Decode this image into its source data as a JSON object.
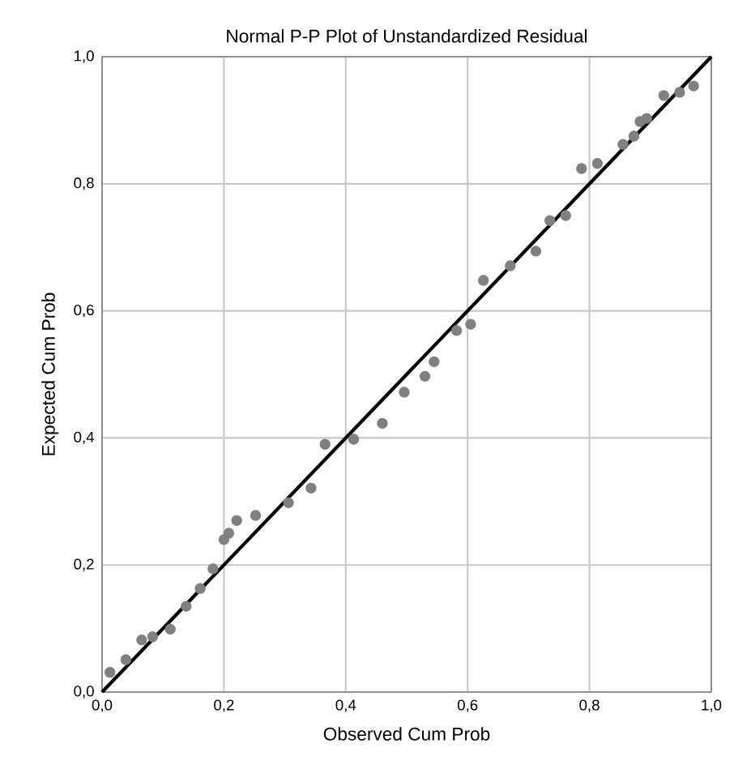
{
  "chart_data": {
    "type": "scatter",
    "title": "Normal P-P Plot of Unstandardized Residual",
    "xlabel": "Observed Cum Prob",
    "ylabel": "Expected Cum Prob",
    "xlim": [
      0,
      1
    ],
    "ylim": [
      0,
      1
    ],
    "xticks": [
      {
        "value": 0,
        "label": "0,0"
      },
      {
        "value": 0.2,
        "label": "0,2"
      },
      {
        "value": 0.4,
        "label": "0,4"
      },
      {
        "value": 0.6,
        "label": "0,6"
      },
      {
        "value": 0.8,
        "label": "0,8"
      },
      {
        "value": 1,
        "label": "1,0"
      }
    ],
    "yticks": [
      {
        "value": 0,
        "label": "0,0"
      },
      {
        "value": 0.2,
        "label": "0,2"
      },
      {
        "value": 0.4,
        "label": "0,4"
      },
      {
        "value": 0.6,
        "label": "0,6"
      },
      {
        "value": 0.8,
        "label": "0,8"
      },
      {
        "value": 1,
        "label": "1,0"
      }
    ],
    "grid": true,
    "series": [
      {
        "color": "#808080",
        "marker": "circle",
        "x": [
          0.013,
          0.039,
          0.065,
          0.083,
          0.112,
          0.138,
          0.161,
          0.182,
          0.2,
          0.208,
          0.221,
          0.252,
          0.306,
          0.343,
          0.366,
          0.413,
          0.46,
          0.496,
          0.53,
          0.545,
          0.582,
          0.605,
          0.626,
          0.67,
          0.712,
          0.735,
          0.761,
          0.787,
          0.813,
          0.855,
          0.873,
          0.883,
          0.894,
          0.922,
          0.948,
          0.971
        ],
        "values": [
          0.031,
          0.051,
          0.082,
          0.087,
          0.099,
          0.135,
          0.163,
          0.194,
          0.24,
          0.25,
          0.27,
          0.278,
          0.298,
          0.321,
          0.39,
          0.398,
          0.423,
          0.472,
          0.497,
          0.52,
          0.569,
          0.579,
          0.648,
          0.671,
          0.694,
          0.742,
          0.75,
          0.824,
          0.832,
          0.862,
          0.875,
          0.898,
          0.903,
          0.939,
          0.944,
          0.954
        ]
      },
      {
        "type": "line",
        "color": "#000000",
        "marker": "none",
        "line_style": "solid",
        "x": [
          0,
          1
        ],
        "values": [
          0,
          1
        ]
      }
    ]
  }
}
